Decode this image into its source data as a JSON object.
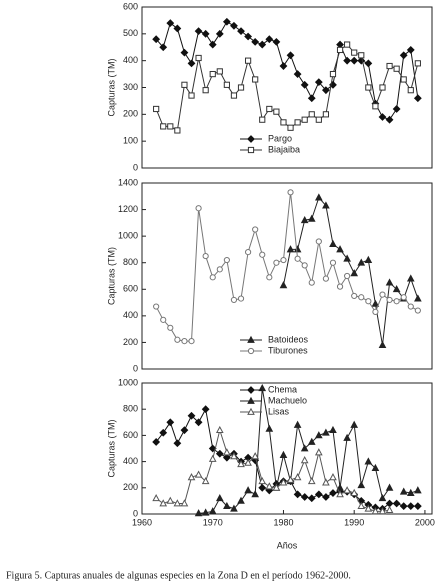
{
  "chart_data": [
    {
      "type": "line",
      "ylabel": "Capturas (TM)",
      "x": [
        1962,
        1963,
        1964,
        1965,
        1966,
        1967,
        1968,
        1969,
        1970,
        1971,
        1972,
        1973,
        1974,
        1975,
        1976,
        1977,
        1978,
        1979,
        1980,
        1981,
        1982,
        1983,
        1984,
        1985,
        1986,
        1987,
        1988,
        1989,
        1990,
        1991,
        1992,
        1993,
        1994,
        1995,
        1996,
        1997,
        1998,
        1999
      ],
      "xlim": [
        1960,
        2001
      ],
      "ylim": [
        0,
        600
      ],
      "yticks": [
        0,
        100,
        200,
        300,
        400,
        500,
        600
      ],
      "legend": "lower center",
      "series": [
        {
          "name": "Pargo",
          "color": "#111",
          "marker": "diamond",
          "filled": true,
          "values": [
            480,
            450,
            540,
            520,
            430,
            390,
            510,
            500,
            460,
            500,
            545,
            530,
            510,
            490,
            470,
            460,
            480,
            470,
            380,
            420,
            350,
            310,
            260,
            320,
            290,
            310,
            460,
            400,
            400,
            400,
            390,
            240,
            190,
            180,
            220,
            420,
            440,
            260
          ]
        },
        {
          "name": "Biajaiba",
          "color": "#333",
          "marker": "square",
          "filled": false,
          "values": [
            220,
            155,
            155,
            140,
            310,
            270,
            410,
            290,
            350,
            360,
            310,
            270,
            300,
            400,
            330,
            180,
            220,
            210,
            170,
            150,
            170,
            180,
            200,
            180,
            200,
            350,
            440,
            460,
            430,
            420,
            300,
            230,
            300,
            380,
            370,
            330,
            290,
            390
          ]
        }
      ]
    },
    {
      "type": "line",
      "ylabel": "Capturas (TM)",
      "x": [
        1962,
        1963,
        1964,
        1965,
        1966,
        1967,
        1968,
        1969,
        1970,
        1971,
        1972,
        1973,
        1974,
        1975,
        1976,
        1977,
        1978,
        1979,
        1980,
        1981,
        1982,
        1983,
        1984,
        1985,
        1986,
        1987,
        1988,
        1989,
        1990,
        1991,
        1992,
        1993,
        1994,
        1995,
        1996,
        1997,
        1998,
        1999
      ],
      "xlim": [
        1960,
        2001
      ],
      "ylim": [
        0,
        1400
      ],
      "yticks": [
        0,
        200,
        400,
        600,
        800,
        1000,
        1200,
        1400
      ],
      "legend": "lower center",
      "series": [
        {
          "name": "Batoideos",
          "color": "#222",
          "marker": "triangle",
          "filled": true,
          "values": [
            null,
            null,
            null,
            null,
            null,
            null,
            null,
            null,
            null,
            null,
            null,
            null,
            null,
            null,
            null,
            null,
            null,
            null,
            630,
            900,
            900,
            1120,
            1130,
            1290,
            1230,
            940,
            900,
            830,
            720,
            800,
            820,
            490,
            180,
            650,
            600,
            530,
            680,
            530
          ]
        },
        {
          "name": "Tiburones",
          "color": "#777",
          "marker": "circle",
          "filled": false,
          "values": [
            470,
            370,
            310,
            220,
            210,
            210,
            1210,
            850,
            690,
            750,
            820,
            520,
            530,
            880,
            1050,
            860,
            690,
            800,
            820,
            1330,
            830,
            780,
            650,
            960,
            680,
            800,
            620,
            700,
            550,
            540,
            510,
            430,
            560,
            520,
            510,
            540,
            470,
            440
          ]
        }
      ]
    },
    {
      "type": "line",
      "ylabel": "Capturas (TM)",
      "xlabel": "Años",
      "x": [
        1962,
        1963,
        1964,
        1965,
        1966,
        1967,
        1968,
        1969,
        1970,
        1971,
        1972,
        1973,
        1974,
        1975,
        1976,
        1977,
        1978,
        1979,
        1980,
        1981,
        1982,
        1983,
        1984,
        1985,
        1986,
        1987,
        1988,
        1989,
        1990,
        1991,
        1992,
        1993,
        1994,
        1995,
        1996,
        1997,
        1998,
        1999
      ],
      "xlim": [
        1960,
        2001
      ],
      "ylim": [
        0,
        1000
      ],
      "yticks": [
        0,
        200,
        400,
        600,
        800,
        1000
      ],
      "xticks": [
        1960,
        1970,
        1980,
        1990,
        2000
      ],
      "legend": "upper center",
      "series": [
        {
          "name": "Chema",
          "color": "#111",
          "marker": "diamond",
          "filled": true,
          "values": [
            550,
            620,
            700,
            540,
            640,
            750,
            700,
            800,
            500,
            460,
            430,
            460,
            400,
            430,
            410,
            200,
            180,
            230,
            250,
            250,
            150,
            130,
            120,
            150,
            130,
            160,
            170,
            170,
            150,
            100,
            70,
            50,
            40,
            80,
            80,
            60,
            60,
            60
          ]
        },
        {
          "name": "Machuelo",
          "color": "#222",
          "marker": "triangle",
          "filled": true,
          "values": [
            null,
            null,
            null,
            null,
            null,
            null,
            5,
            10,
            20,
            120,
            60,
            40,
            100,
            180,
            150,
            960,
            650,
            200,
            450,
            250,
            680,
            500,
            550,
            600,
            620,
            640,
            200,
            580,
            680,
            220,
            400,
            350,
            120,
            200,
            null,
            170,
            160,
            180
          ]
        },
        {
          "name": "Lisas",
          "color": "#555",
          "marker": "triangle",
          "filled": false,
          "values": [
            120,
            80,
            100,
            80,
            80,
            280,
            300,
            250,
            420,
            640,
            470,
            440,
            380,
            390,
            440,
            250,
            210,
            200,
            240,
            260,
            280,
            410,
            250,
            470,
            240,
            280,
            150,
            180,
            160,
            60,
            40,
            20,
            20,
            30,
            null,
            null,
            null,
            null
          ]
        }
      ]
    }
  ],
  "caption": "Figura 5. Capturas anuales de algunas especies en la Zona D en el período 1962-2000."
}
